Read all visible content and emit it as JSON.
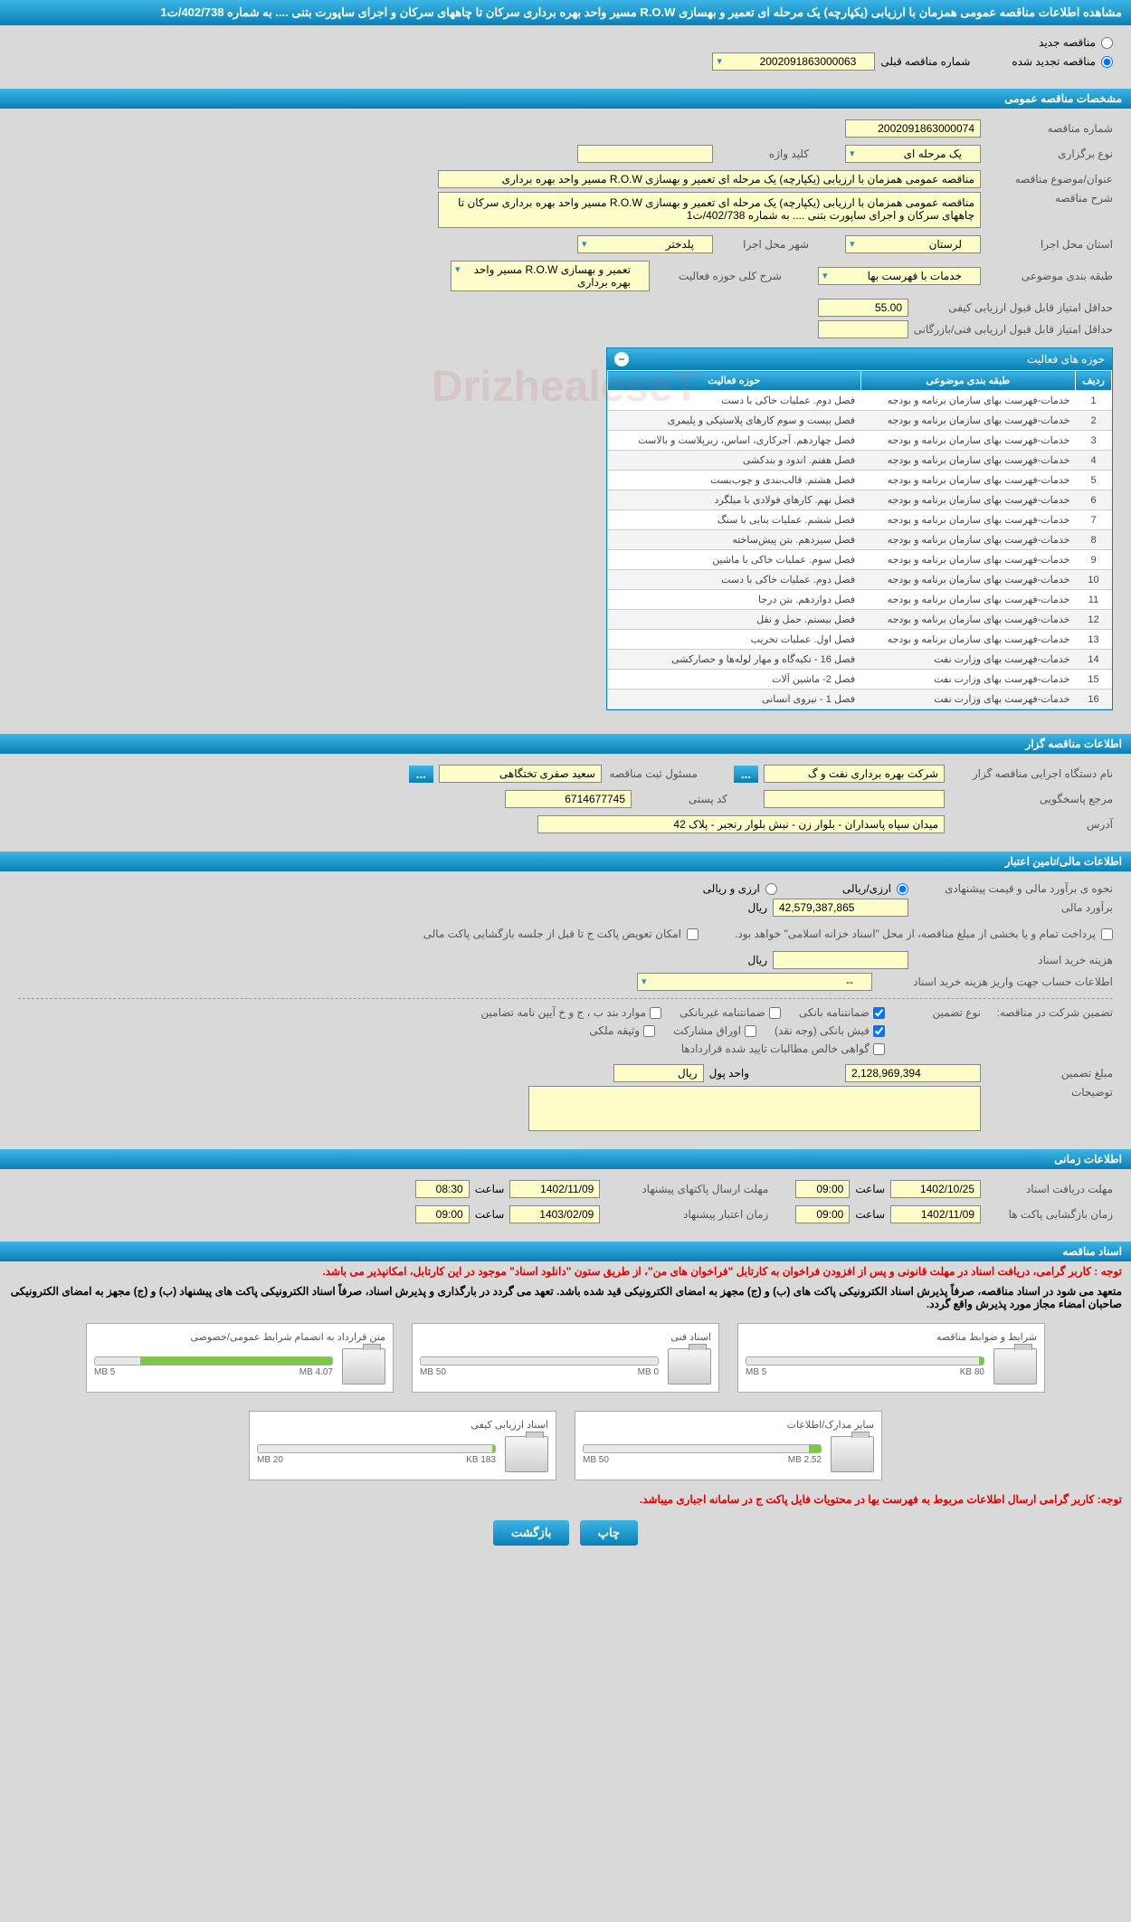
{
  "page_title": "مشاهده اطلاعات مناقصه عمومی همزمان با ارزیابی (یکپارچه) یک مرحله ای تعمیر و بهسازی R.O.W مسیر واحد بهره برداری سرکان تا چاههای سرکان و اجرای ساپورت بتنی .... به شماره 402/738/ت1",
  "top_radios": {
    "new_label": "مناقصه جدید",
    "renew_label": "مناقصه تجدید شده",
    "prev_num_label": "شماره مناقصه قبلی",
    "prev_num_value": "2002091863000063"
  },
  "sections": {
    "spec": "مشخصات مناقصه عمومی",
    "org": "اطلاعات مناقصه گزار",
    "finance": "اطلاعات مالی/تامین اعتبار",
    "time": "اطلاعات زمانی",
    "docs": "اسناد مناقصه"
  },
  "spec": {
    "num_label": "شماره مناقصه",
    "num_value": "2002091863000074",
    "type_label": "نوع برگزاری",
    "type_value": "یک مرحله ای",
    "keyword_label": "کلید واژه",
    "keyword_value": "",
    "subject_label": "عنوان/موضوع مناقصه",
    "subject_value": "مناقصه عمومی همزمان با ارزیابی (یکپارچه) یک مرحله ای تعمیر و بهسازی R.O.W مسیر واحد بهره برداری",
    "desc_label": "شرح مناقصه",
    "desc_value": "مناقصه عمومی همزمان با ارزیابی (یکپارچه) یک مرحله ای تعمیر و بهسازی R.O.W مسیر واحد بهره برداری سرکان تا چاههای سرکان و اجرای ساپورت بتنی .... به شماره 402/738/ت1",
    "province_label": "استان محل اجرا",
    "province_value": "لرستان",
    "city_label": "شهر محل اجرا",
    "city_value": "پلدختر",
    "class_label": "طبقه بندی موضوعی",
    "class_value": "خدمات با فهرست بها",
    "scope_label": "شرح کلی حوزه فعالیت",
    "scope_value": "تعمیر و بهسازی R.O.W مسیر واحد بهره برداری",
    "min_qual_label": "حداقل امتیاز قابل قبول ارزیابی کیفی",
    "min_qual_value": "55.00",
    "min_tech_label": "حداقل امتیاز قابل قبول ارزیابی فنی/بازرگانی",
    "min_tech_value": ""
  },
  "activity_table": {
    "title": "حوزه های فعالیت",
    "col_row": "ردیف",
    "col_class": "طبقه بندی موضوعی",
    "col_scope": "حوزه فعالیت",
    "rows": [
      {
        "n": "1",
        "c": "خدمات-فهرست بهای سازمان برنامه و بودجه",
        "s": "فصل دوم. عملیات خاکی با دست"
      },
      {
        "n": "2",
        "c": "خدمات-فهرست بهای سازمان برنامه و بودجه",
        "s": "فصل بیست و سوم کارهای پلاستیکی و پلیمری"
      },
      {
        "n": "3",
        "c": "خدمات-فهرست بهای سازمان برنامه و بودجه",
        "s": "فصل چهاردهم. آجرکاری، اساس، زیرپلاست و بالاست"
      },
      {
        "n": "4",
        "c": "خدمات-فهرست بهای سازمان برنامه و بودجه",
        "s": "فصل هفتم. اندود و بندکشی"
      },
      {
        "n": "5",
        "c": "خدمات-فهرست بهای سازمان برنامه و بودجه",
        "s": "فصل هشتم. قالب‌بندی و چوب‌بست"
      },
      {
        "n": "6",
        "c": "خدمات-فهرست بهای سازمان برنامه و بودجه",
        "s": "فصل نهم. کارهای فولادی با میلگرد"
      },
      {
        "n": "7",
        "c": "خدمات-فهرست بهای سازمان برنامه و بودجه",
        "s": "فصل ششم. عملیات بنایی با سنگ"
      },
      {
        "n": "8",
        "c": "خدمات-فهرست بهای سازمان برنامه و بودجه",
        "s": "فصل سیزدهم. بتن پیش‌ساخته"
      },
      {
        "n": "9",
        "c": "خدمات-فهرست بهای سازمان برنامه و بودجه",
        "s": "فصل سوم. عملیات خاکی با ماشین"
      },
      {
        "n": "10",
        "c": "خدمات-فهرست بهای سازمان برنامه و بودجه",
        "s": "فصل دوم. عملیات خاکی با دست"
      },
      {
        "n": "11",
        "c": "خدمات-فهرست بهای سازمان برنامه و بودجه",
        "s": "فصل دوازدهم. بتن درجا"
      },
      {
        "n": "12",
        "c": "خدمات-فهرست بهای سازمان برنامه و بودجه",
        "s": "فصل بیستم. حمل و نقل"
      },
      {
        "n": "13",
        "c": "خدمات-فهرست بهای سازمان برنامه و بودجه",
        "s": "فصل اول. عملیات تخریب"
      },
      {
        "n": "14",
        "c": "خدمات-فهرست بهای وزارت نفت",
        "s": "فصل 16 - تکیه‌گاه و مهار لوله‌ها و حصارکشی"
      },
      {
        "n": "15",
        "c": "خدمات-فهرست بهای وزارت نفت",
        "s": "فصل 2- ماشین آلات"
      },
      {
        "n": "16",
        "c": "خدمات-فهرست بهای وزارت نفت",
        "s": "فصل 1 - نیروی انسانی"
      }
    ]
  },
  "org": {
    "exec_label": "نام دستگاه اجرایی مناقصه گزار",
    "exec_value": "شرکت بهره برداری نفت و گ",
    "resp_person_label": "مسئول ثبت مناقصه",
    "resp_person_value": "سعید صفری تختگاهی",
    "ref_label": "مرجع پاسخگویی",
    "ref_value": "",
    "postal_label": "کد پستی",
    "postal_value": "6714677745",
    "address_label": "آدرس",
    "address_value": "میدان سپاه پاسداران - بلوار زن - نبش بلوار رنجبر - پلاک 42"
  },
  "finance": {
    "estimate_method_label": "نحوه ی برآورد مالی و قیمت پیشنهادی",
    "opt_arzi_riali": "ارزی/ریالی",
    "opt_arzi_o_riali": "ارزی و ریالی",
    "estimate_label": "برآورد مالی",
    "estimate_value": "42,579,387,865",
    "currency": "ریال",
    "payment_note": "پرداخت تمام و یا بخشی از مبلغ مناقصه، از محل \"اسناد خزانه اسلامی\" خواهد بود.",
    "refund_note": "امکان تعویض پاکت ج تا قبل از جلسه بازگشایی پاکت مالی",
    "buy_cost_label": "هزینه خرید اسناد",
    "buy_cost_value": "",
    "account_label": "اطلاعات حساب جهت واریز هزینه خرید اسناد",
    "account_value": "--",
    "guarantee_intro": "تضمین شرکت در مناقصه:",
    "guarantee_type_label": "نوع تضمین",
    "g1": "ضمانتنامه بانکی",
    "g2": "ضمانتنامه غیربانکی",
    "g3": "موارد بند ب ، ج و خ آیین نامه تضامین",
    "g4": "فیش بانکی (وجه نقد)",
    "g5": "اوراق مشارکت",
    "g6": "وثیقه ملکی",
    "g7": "گواهی خالص مطالبات تایید شده قراردادها",
    "guarantee_amount_label": "مبلغ تضمین",
    "guarantee_amount_value": "2,128,969,394",
    "unit_label": "واحد پول",
    "unit_value": "ریال",
    "notes_label": "توضیحات",
    "notes_value": ""
  },
  "time": {
    "doc_deadline_label": "مهلت دریافت اسناد",
    "doc_deadline_date": "1402/10/25",
    "doc_deadline_time": "09:00",
    "time_word": "ساعت",
    "packet_deadline_label": "مهلت ارسال پاکتهای پیشنهاد",
    "packet_deadline_date": "1402/11/09",
    "packet_deadline_time": "08:30",
    "open_label": "زمان بازگشایی پاکت ها",
    "open_date": "1402/11/09",
    "open_time": "09:00",
    "credit_label": "زمان اعتبار پیشنهاد",
    "credit_date": "1403/02/09",
    "credit_time": "09:00"
  },
  "docs": {
    "note1": "توجه : کاربر گرامی، دریافت اسناد در مهلت قانونی و پس از افزودن فراخوان به کارتابل \"فراخوان های من\"، از طریق ستون \"دانلود اسناد\" موجود در این کارتابل، امکانپذیر می باشد.",
    "note2": "متعهد می شود در اسناد مناقصه، صرفاً پذیرش اسناد الکترونیکی پاکت های (ب) و (ج) مجهز به امضای الکترونیکی قید شده باشد. تعهد می گردد در بارگذاری و پذیرش اسناد، صرفاً اسناد الکترونیکی پاکت های پیشنهاد (ب) و (ج) مجهز به امضای الکترونیکی صاحبان امضاء مجاز مورد پذیرش واقع گردد.",
    "note3": "توجه: کاربر گرامی ارسال اطلاعات مربوط به فهرست بها در محتویات فایل پاکت ج در سامانه اجباری میباشد.",
    "cards": [
      {
        "title": "شرایط و ضوابط مناقصه",
        "used": "80 KB",
        "max": "5 MB",
        "pct": 2
      },
      {
        "title": "اسناد فنی",
        "used": "0 MB",
        "max": "50 MB",
        "pct": 0
      },
      {
        "title": "متن قرارداد به انضمام شرایط عمومی/خصوصی",
        "used": "4.07 MB",
        "max": "5 MB",
        "pct": 81
      },
      {
        "title": "سایر مدارک/اطلاعات",
        "used": "2.52 MB",
        "max": "50 MB",
        "pct": 5
      },
      {
        "title": "اسناد ارزیابی کیفی",
        "used": "183 KB",
        "max": "20 MB",
        "pct": 1
      }
    ]
  },
  "buttons": {
    "print": "چاپ",
    "back": "بازگشت"
  },
  "watermark": "DrizhealeseT"
}
